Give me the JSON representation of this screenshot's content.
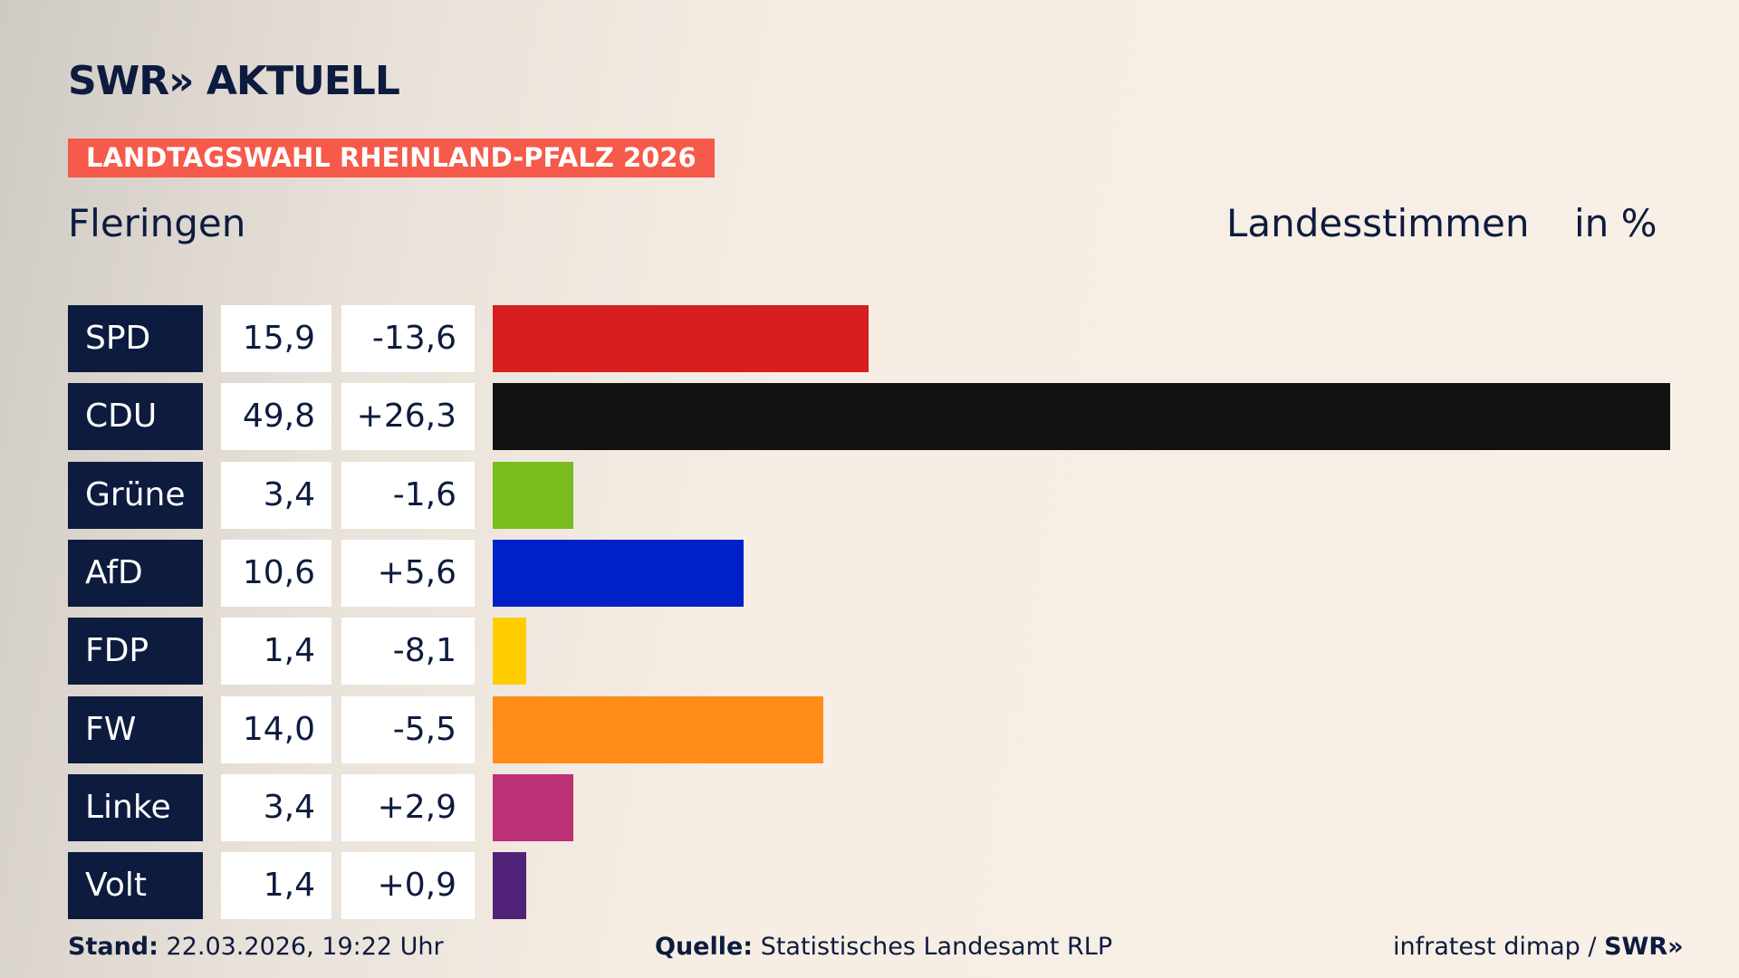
{
  "chart_data": {
    "type": "bar",
    "brand": "SWR» AKTUELL",
    "label": "LANDTAGSWAHL RHEINLAND-PFALZ 2026",
    "title": "Fleringen",
    "measure": "Landesstimmen",
    "unit": "in %",
    "categories": [
      "SPD",
      "CDU",
      "Grüne",
      "AfD",
      "FDP",
      "FW",
      "Linke",
      "Volt"
    ],
    "values": [
      15.9,
      49.8,
      3.4,
      10.6,
      1.4,
      14.0,
      3.4,
      1.4
    ],
    "value_labels": [
      "15,9",
      "49,8",
      "3,4",
      "10,6",
      "1,4",
      "14,0",
      "3,4",
      "1,4"
    ],
    "changes": [
      -13.6,
      26.3,
      -1.6,
      5.6,
      -8.1,
      -5.5,
      2.9,
      0.9
    ],
    "change_labels": [
      "-13,6",
      "+26,3",
      "-1,6",
      "+5,6",
      "-8,1",
      "-5,5",
      "+2,9",
      "+0,9"
    ],
    "colors": [
      "#d71f1f",
      "#111111",
      "#78bd1d",
      "#0021c8",
      "#ffcc00",
      "#ff8c17",
      "#bc3075",
      "#502379"
    ],
    "xlim": [
      0,
      49.8
    ],
    "footer": {
      "stand_label": "Stand:",
      "stand": "22.03.2026, 19:22 Uhr",
      "source_label": "Quelle:",
      "source": "Statistisches Landesamt RLP",
      "pollster": "infratest dimap /",
      "logo": "SWR»"
    }
  }
}
